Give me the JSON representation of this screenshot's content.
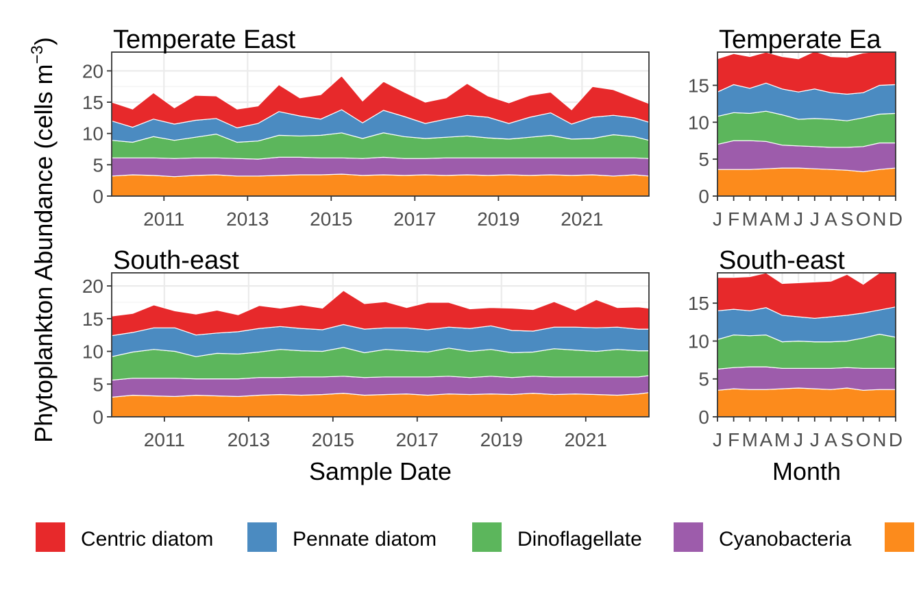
{
  "figure": {
    "ylabel_main": "Phytoplankton Abundance (cells m",
    "ylabel_sup": "−3",
    "ylabel_close": ")",
    "xlabel_left": "Sample Date",
    "xlabel_right": "Month"
  },
  "legend": {
    "items": [
      {
        "label": "Centric diatom",
        "color": "#e7292b"
      },
      {
        "label": "Pennate diatom",
        "color": "#4b8bc1"
      },
      {
        "label": "Dinoflagellate",
        "color": "#5cb65c"
      },
      {
        "label": "Cyanobacteria",
        "color": "#9d5cab"
      },
      {
        "label": "",
        "color": "#fc8b1c"
      }
    ]
  },
  "chart_data": [
    {
      "type": "area",
      "title": "Temperate East",
      "stacked": true,
      "xlim": [
        2009.75,
        2022.6
      ],
      "ylim": [
        0,
        23
      ],
      "xticks": [
        2011,
        2013,
        2015,
        2017,
        2019,
        2021
      ],
      "yticks": [
        0,
        5,
        10,
        15,
        20
      ],
      "x": [
        2009.75,
        2010.25,
        2010.75,
        2011.25,
        2011.75,
        2012.25,
        2012.75,
        2013.25,
        2013.75,
        2014.25,
        2014.75,
        2015.25,
        2015.75,
        2016.25,
        2016.75,
        2017.25,
        2017.75,
        2018.25,
        2018.75,
        2019.25,
        2019.75,
        2020.25,
        2020.75,
        2021.25,
        2021.75,
        2022.25,
        2022.6
      ],
      "series": [
        {
          "name": "",
          "values": [
            3.2,
            3.4,
            3.3,
            3.1,
            3.3,
            3.4,
            3.2,
            3.2,
            3.3,
            3.4,
            3.4,
            3.5,
            3.3,
            3.4,
            3.3,
            3.4,
            3.3,
            3.4,
            3.3,
            3.4,
            3.3,
            3.4,
            3.3,
            3.4,
            3.2,
            3.4,
            3.2
          ]
        },
        {
          "name": "Cyanobacteria",
          "values": [
            2.9,
            2.7,
            2.8,
            2.9,
            2.8,
            2.7,
            2.8,
            2.7,
            2.9,
            2.8,
            2.7,
            2.6,
            2.7,
            2.8,
            2.7,
            2.6,
            2.8,
            2.7,
            2.8,
            2.7,
            2.8,
            2.7,
            2.8,
            2.7,
            2.9,
            2.7,
            2.8
          ]
        },
        {
          "name": "Dinoflagellate",
          "values": [
            2.8,
            2.5,
            3.4,
            2.9,
            3.3,
            3.8,
            2.6,
            2.9,
            3.5,
            3.4,
            3.6,
            4.0,
            3.2,
            3.9,
            3.5,
            3.2,
            3.3,
            3.5,
            3.2,
            3.0,
            3.3,
            3.6,
            3.0,
            3.1,
            3.7,
            3.4,
            2.9
          ]
        },
        {
          "name": "Pennate diatom",
          "values": [
            3.1,
            2.4,
            2.8,
            2.6,
            2.7,
            2.5,
            2.3,
            2.8,
            3.8,
            3.2,
            2.6,
            3.7,
            2.5,
            3.6,
            3.2,
            2.4,
            2.9,
            3.3,
            3.3,
            2.5,
            3.2,
            3.6,
            2.4,
            3.4,
            3.1,
            3.0,
            2.9
          ]
        },
        {
          "name": "Centric diatom",
          "values": [
            3.0,
            2.9,
            4.2,
            2.6,
            4.0,
            3.6,
            3.0,
            2.8,
            4.3,
            2.9,
            3.9,
            5.4,
            3.5,
            4.6,
            3.9,
            3.4,
            3.4,
            5.1,
            3.4,
            3.3,
            3.5,
            3.3,
            2.3,
            4.9,
            4.1,
            3.2,
            3.0
          ]
        }
      ]
    },
    {
      "type": "area",
      "title": "Temperate Ea",
      "stacked": true,
      "categories": [
        "J",
        "F",
        "M",
        "A",
        "M",
        "J",
        "J",
        "A",
        "S",
        "O",
        "N",
        "D"
      ],
      "ylim": [
        0,
        19.5
      ],
      "yticks": [
        0,
        5,
        10,
        15
      ],
      "series": [
        {
          "name": "",
          "values": [
            3.6,
            3.6,
            3.6,
            3.7,
            3.8,
            3.8,
            3.7,
            3.6,
            3.5,
            3.3,
            3.6,
            3.8
          ]
        },
        {
          "name": "Cyanobacteria",
          "values": [
            3.4,
            3.9,
            3.9,
            3.7,
            3.1,
            3.0,
            3.0,
            3.0,
            3.1,
            3.4,
            3.6,
            3.4
          ]
        },
        {
          "name": "Dinoflagellate",
          "values": [
            3.8,
            3.8,
            3.7,
            4.1,
            4.1,
            3.6,
            3.8,
            3.8,
            3.6,
            3.9,
            3.9,
            4.0
          ]
        },
        {
          "name": "Pennate diatom",
          "values": [
            3.3,
            3.8,
            3.4,
            3.8,
            3.5,
            3.7,
            4.0,
            3.6,
            3.6,
            3.4,
            3.9,
            3.9
          ]
        },
        {
          "name": "Centric diatom",
          "values": [
            4.5,
            4.2,
            4.3,
            4.2,
            4.4,
            4.5,
            5.1,
            4.9,
            5.0,
            5.4,
            4.6,
            4.5
          ]
        }
      ]
    },
    {
      "type": "area",
      "title": "South-east",
      "stacked": true,
      "xlim": [
        2009.75,
        2022.5
      ],
      "ylim": [
        0,
        22
      ],
      "xticks": [
        2011,
        2013,
        2015,
        2017,
        2019,
        2021
      ],
      "yticks": [
        0,
        5,
        10,
        15,
        20
      ],
      "x": [
        2009.75,
        2010.25,
        2010.75,
        2011.25,
        2011.75,
        2012.25,
        2012.75,
        2013.25,
        2013.75,
        2014.25,
        2014.75,
        2015.25,
        2015.75,
        2016.25,
        2016.75,
        2017.25,
        2017.75,
        2018.25,
        2018.75,
        2019.25,
        2019.75,
        2020.25,
        2020.75,
        2021.25,
        2021.75,
        2022.25,
        2022.5
      ],
      "series": [
        {
          "name": "",
          "values": [
            3.0,
            3.3,
            3.2,
            3.1,
            3.3,
            3.2,
            3.1,
            3.3,
            3.4,
            3.3,
            3.4,
            3.6,
            3.3,
            3.4,
            3.5,
            3.3,
            3.5,
            3.4,
            3.5,
            3.4,
            3.6,
            3.4,
            3.5,
            3.4,
            3.3,
            3.5,
            3.7
          ]
        },
        {
          "name": "Cyanobacteria",
          "values": [
            2.6,
            2.6,
            2.7,
            2.8,
            2.5,
            2.6,
            2.7,
            2.7,
            2.6,
            2.8,
            2.7,
            2.6,
            2.7,
            2.7,
            2.6,
            2.8,
            2.7,
            2.6,
            2.7,
            2.6,
            2.6,
            2.7,
            2.6,
            2.7,
            2.8,
            2.6,
            2.6
          ]
        },
        {
          "name": "Dinoflagellate",
          "values": [
            3.6,
            4.0,
            4.4,
            4.1,
            3.4,
            3.9,
            3.8,
            3.9,
            4.3,
            4.0,
            3.9,
            4.4,
            3.8,
            4.2,
            4.0,
            3.8,
            4.3,
            4.0,
            4.1,
            3.8,
            3.7,
            4.3,
            4.1,
            3.9,
            4.2,
            4.0,
            3.8
          ]
        },
        {
          "name": "Pennate diatom",
          "values": [
            3.2,
            3.0,
            3.3,
            3.6,
            3.3,
            3.1,
            3.4,
            3.6,
            3.5,
            3.4,
            3.3,
            3.5,
            3.6,
            3.3,
            3.5,
            3.4,
            3.2,
            3.5,
            3.6,
            3.4,
            3.2,
            3.3,
            3.5,
            3.6,
            3.4,
            3.3,
            3.3
          ]
        },
        {
          "name": "Centric diatom",
          "values": [
            3.0,
            2.9,
            3.5,
            2.6,
            3.2,
            3.5,
            2.6,
            3.5,
            2.8,
            3.6,
            3.3,
            5.2,
            3.9,
            4.0,
            3.1,
            4.2,
            3.8,
            3.0,
            2.8,
            3.4,
            3.3,
            3.9,
            2.6,
            4.3,
            3.0,
            3.4,
            3.2
          ]
        }
      ]
    },
    {
      "type": "area",
      "title": "South-east",
      "stacked": true,
      "categories": [
        "J",
        "F",
        "M",
        "A",
        "M",
        "J",
        "J",
        "A",
        "S",
        "O",
        "N",
        "D"
      ],
      "ylim": [
        0,
        19
      ],
      "yticks": [
        0,
        5,
        10,
        15
      ],
      "series": [
        {
          "name": "",
          "values": [
            3.5,
            3.7,
            3.6,
            3.6,
            3.7,
            3.8,
            3.7,
            3.6,
            3.8,
            3.5,
            3.6,
            3.6
          ]
        },
        {
          "name": "Cyanobacteria",
          "values": [
            2.8,
            2.8,
            3.0,
            3.0,
            2.7,
            2.6,
            2.7,
            2.8,
            2.7,
            2.9,
            2.8,
            2.8
          ]
        },
        {
          "name": "Dinoflagellate",
          "values": [
            3.9,
            4.3,
            4.1,
            4.2,
            3.5,
            3.6,
            3.5,
            3.5,
            3.5,
            4.0,
            4.5,
            4.1
          ]
        },
        {
          "name": "Pennate diatom",
          "values": [
            3.8,
            3.4,
            3.3,
            3.6,
            3.5,
            3.2,
            3.1,
            3.3,
            3.4,
            3.3,
            3.2,
            4.0
          ]
        },
        {
          "name": "Centric diatom",
          "values": [
            4.4,
            4.2,
            4.5,
            4.6,
            4.2,
            4.5,
            4.8,
            4.7,
            5.4,
            3.8,
            4.9,
            4.5
          ]
        }
      ]
    }
  ]
}
